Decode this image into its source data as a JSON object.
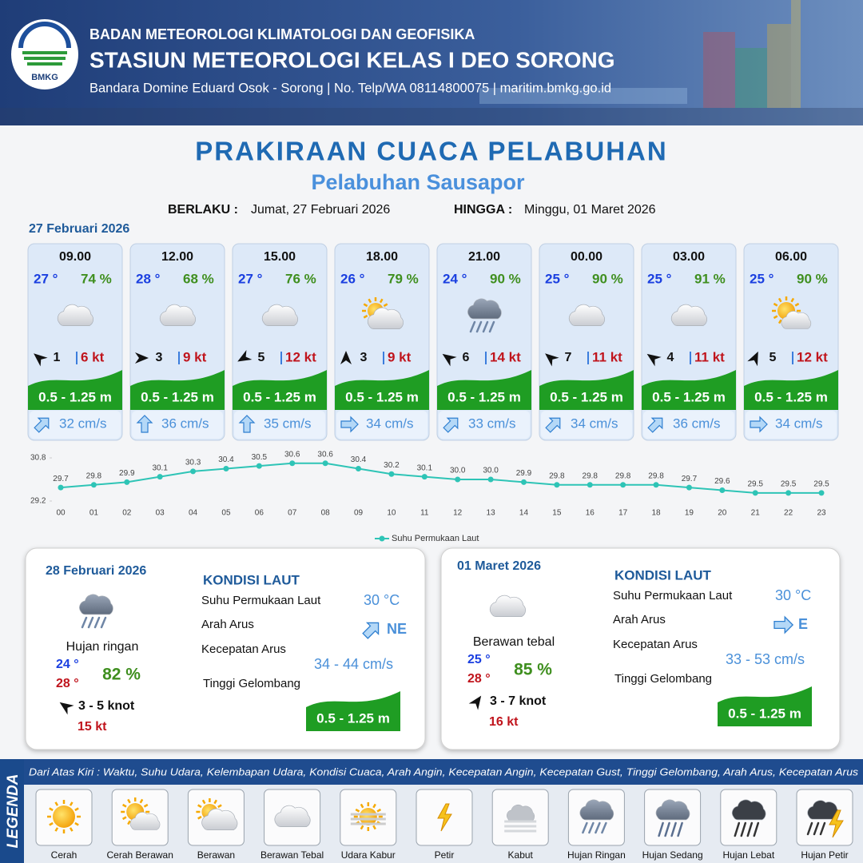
{
  "header": {
    "org": "BADAN METEOROLOGI KLIMATOLOGI DAN GEOFISIKA",
    "station": "STASIUN METEOROLOGI KELAS I DEO SORONG",
    "contact": "Bandara Domine Eduard Osok - Sorong | No. Telp/WA 08114800075 | maritim.bmkg.go.id",
    "logo": "BMKG"
  },
  "title": "PRAKIRAAN CUACA PELABUHAN",
  "subtitle": "Pelabuhan Sausapor",
  "validity": {
    "from_label": "BERLAKU :",
    "from": "Jumat, 27 Februari 2026",
    "to_label": "HINGGA :",
    "to": "Minggu, 01 Maret 2026"
  },
  "day1": {
    "date": "27 Februari 2026",
    "forecasts": [
      {
        "time": "09.00",
        "temp": "27 °",
        "humidity": "74 %",
        "wind": "1",
        "gust": "6 kt",
        "wave": "0.5 - 1.25 m",
        "current": "32 cm/s"
      },
      {
        "time": "12.00",
        "temp": "28 °",
        "humidity": "68 %",
        "wind": "3",
        "gust": "9 kt",
        "wave": "0.5 - 1.25 m",
        "current": "36 cm/s"
      },
      {
        "time": "15.00",
        "temp": "27 °",
        "humidity": "76 %",
        "wind": "5",
        "gust": "12 kt",
        "wave": "0.5 - 1.25 m",
        "current": "35 cm/s"
      },
      {
        "time": "18.00",
        "temp": "26 °",
        "humidity": "79 %",
        "wind": "3",
        "gust": "9 kt",
        "wave": "0.5 - 1.25 m",
        "current": "34 cm/s"
      },
      {
        "time": "21.00",
        "temp": "24 °",
        "humidity": "90 %",
        "wind": "6",
        "gust": "14 kt",
        "wave": "0.5 - 1.25 m",
        "current": "33 cm/s"
      },
      {
        "time": "00.00",
        "temp": "25 °",
        "humidity": "90 %",
        "wind": "7",
        "gust": "11 kt",
        "wave": "0.5 - 1.25 m",
        "current": "34 cm/s"
      },
      {
        "time": "03.00",
        "temp": "25 °",
        "humidity": "91 %",
        "wind": "4",
        "gust": "11 kt",
        "wave": "0.5 - 1.25 m",
        "current": "36 cm/s"
      },
      {
        "time": "06.00",
        "temp": "25 °",
        "humidity": "90 %",
        "wind": "5",
        "gust": "12 kt",
        "wave": "0.5 - 1.25 m",
        "current": "34 cm/s"
      }
    ]
  },
  "chart_data": {
    "type": "line",
    "categories": [
      "00",
      "01",
      "02",
      "03",
      "04",
      "05",
      "06",
      "07",
      "08",
      "09",
      "10",
      "11",
      "12",
      "13",
      "14",
      "15",
      "16",
      "17",
      "18",
      "19",
      "20",
      "21",
      "22",
      "23"
    ],
    "series": [
      {
        "name": "Suhu Permukaan Laut",
        "color": "#2ec4b6",
        "values": [
          29.7,
          29.8,
          29.9,
          30.1,
          30.3,
          30.4,
          30.5,
          30.6,
          30.6,
          30.4,
          30.2,
          30.1,
          30.0,
          30.0,
          29.9,
          29.8,
          29.8,
          29.8,
          29.8,
          29.7,
          29.6,
          29.5,
          29.5,
          29.5
        ],
        "value_labels": [
          "29.7",
          "29.8",
          "29.9",
          "30.1",
          "30.3",
          "30.4",
          "30.5",
          "30.6",
          "30.6",
          "30.4",
          "30.2",
          "30.1",
          "30.0",
          "30.0",
          "29.9",
          "29.8",
          "29.8",
          "29.8",
          "29.8",
          "29.7",
          "29.6",
          "29.5",
          "29.5",
          "29.5"
        ]
      }
    ],
    "ylim": [
      29.2,
      30.8
    ],
    "yticks": [
      29.2,
      30.8
    ],
    "legend": "bottom"
  },
  "days": [
    {
      "date": "28 Februari 2026",
      "condition": "Hujan ringan",
      "temp_min": "24 °",
      "temp_max": "28 °",
      "humidity": "82 %",
      "wind": "3 - 5 knot",
      "gust": "15 kt",
      "sea": {
        "heading": "KONDISI LAUT",
        "sst_label": "Suhu Permukaan Laut",
        "sst": "30 °C",
        "dir_label": "Arah Arus",
        "dir": "NE",
        "speed_label": "Kecepatan Arus",
        "speed": "34 - 44 cm/s",
        "wave_label": "Tinggi Gelombang",
        "wave": "0.5 - 1.25 m"
      }
    },
    {
      "date": "01 Maret 2026",
      "condition": "Berawan tebal",
      "temp_min": "25 °",
      "temp_max": "28 °",
      "humidity": "85 %",
      "wind": "3 - 7 knot",
      "gust": "16 kt",
      "sea": {
        "heading": "KONDISI LAUT",
        "sst_label": "Suhu Permukaan Laut",
        "sst": "30 °C",
        "dir_label": "Arah Arus",
        "dir": "E",
        "speed_label": "Kecepatan Arus",
        "speed": "33 - 53 cm/s",
        "wave_label": "Tinggi Gelombang",
        "wave": "0.5 - 1.25 m"
      }
    }
  ],
  "legend": {
    "title": "LEGENDA",
    "description": "Dari Atas Kiri : Waktu, Suhu Udara, Kelembapan Udara, Kondisi Cuaca, Arah Angin, Kecepatan Angin, Kecepatan Gust, Tinggi Gelombang, Arah Arus, Kecepatan Arus",
    "items": [
      "Cerah",
      "Cerah Berawan",
      "Berawan",
      "Berawan Tebal",
      "Udara Kabur",
      "Petir",
      "Kabut",
      "Hujan Ringan",
      "Hujan Sedang",
      "Hujan Lebat",
      "Hujan Petir"
    ]
  }
}
